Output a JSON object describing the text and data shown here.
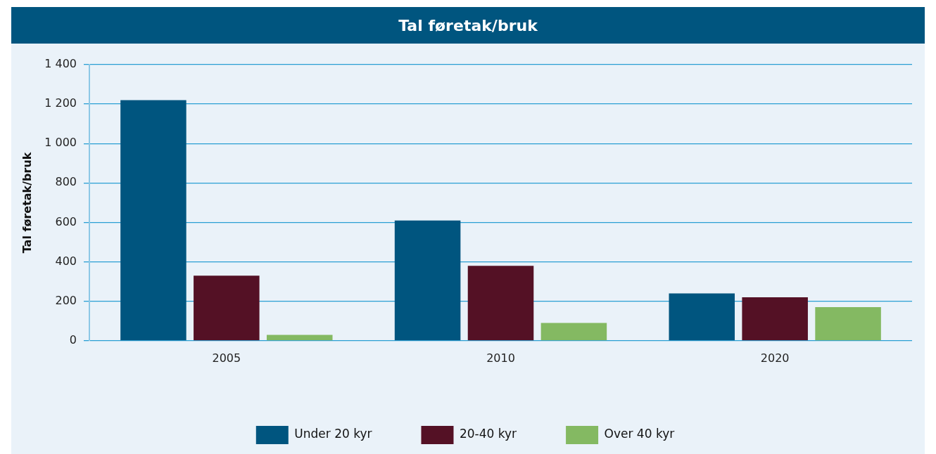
{
  "chart_data": {
    "type": "bar",
    "title": "Tal føretak/bruk",
    "ylabel": "Tal føretak/bruk",
    "categories": [
      "2005",
      "2010",
      "2020"
    ],
    "series": [
      {
        "name": "Under 20 kyr",
        "color": "#00557f",
        "values": [
          1220,
          610,
          240
        ]
      },
      {
        "name": "20-40 kyr",
        "color": "#541125",
        "values": [
          330,
          380,
          220
        ]
      },
      {
        "name": "Over 40 kyr",
        "color": "#84b962",
        "values": [
          30,
          90,
          170
        ]
      }
    ],
    "ylim": [
      0,
      1400
    ],
    "yticks": [
      0,
      200,
      400,
      600,
      800,
      {
        "value": 1000,
        "label": "1 000"
      },
      {
        "value": 1200,
        "label": "1 200"
      },
      {
        "value": 1400,
        "label": "1 400"
      }
    ],
    "grid": "y",
    "legend": "bottom"
  }
}
